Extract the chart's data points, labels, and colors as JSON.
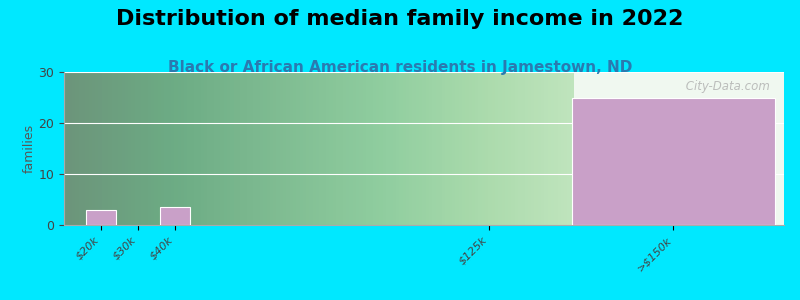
{
  "title": "Distribution of median family income in 2022",
  "subtitle": "Black or African American residents in Jamestown, ND",
  "ylabel": "families",
  "background_color": "#00e8ff",
  "plot_bg_left_color": "#e8f5e0",
  "bar_color": "#c9a0c8",
  "bar_edge_color": "#ffffff",
  "categories": [
    "$20k",
    "$30k",
    "$40k",
    "$125k",
    ">$150k"
  ],
  "cat_positions": [
    20,
    30,
    40,
    125,
    175
  ],
  "values": [
    3.0,
    0,
    3.5,
    0,
    25.0
  ],
  "bar_widths": [
    8,
    0,
    8,
    0,
    55
  ],
  "ylim": [
    0,
    30
  ],
  "yticks": [
    0,
    10,
    20,
    30
  ],
  "title_fontsize": 16,
  "subtitle_fontsize": 11,
  "subtitle_color": "#2a7ab0",
  "watermark": " City-Data.com",
  "xlim": [
    10,
    205
  ],
  "green_zone_end": 148
}
